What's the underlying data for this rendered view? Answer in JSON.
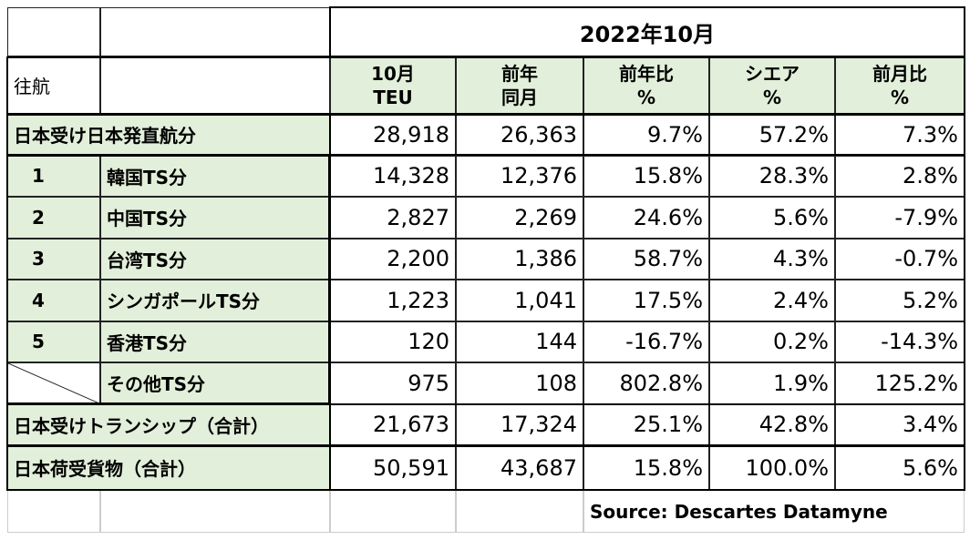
{
  "header": {
    "period": "2022年10月",
    "route": "往航",
    "columns": [
      [
        "10月",
        "TEU"
      ],
      [
        "前年",
        "同月"
      ],
      [
        "前年比",
        "%"
      ],
      [
        "シエア",
        "%"
      ],
      [
        "前月比",
        "%"
      ]
    ]
  },
  "table": {
    "rows": [
      {
        "name": "日本受け日本発直航分",
        "values": [
          "28,918",
          "26,363",
          "9.7%",
          "57.2%",
          "7.3%"
        ]
      },
      {
        "rank": "1",
        "name": "韓国TS分",
        "values": [
          "14,328",
          "12,376",
          "15.8%",
          "28.3%",
          "2.8%"
        ]
      },
      {
        "rank": "2",
        "name": "中国TS分",
        "values": [
          "2,827",
          "2,269",
          "24.6%",
          "5.6%",
          "-7.9%"
        ]
      },
      {
        "rank": "3",
        "name": "台湾TS分",
        "values": [
          "2,200",
          "1,386",
          "58.7%",
          "4.3%",
          "-0.7%"
        ]
      },
      {
        "rank": "4",
        "name": "シンガポールTS分",
        "values": [
          "1,223",
          "1,041",
          "17.5%",
          "2.4%",
          "5.2%"
        ]
      },
      {
        "rank": "5",
        "name": "香港TS分",
        "values": [
          "120",
          "144",
          "-16.7%",
          "0.2%",
          "-14.3%"
        ]
      },
      {
        "name": "その他TS分",
        "values": [
          "975",
          "108",
          "802.8%",
          "1.9%",
          "125.2%"
        ]
      },
      {
        "name": "日本受けトランシップ（合計）",
        "values": [
          "21,673",
          "17,324",
          "25.1%",
          "42.8%",
          "3.4%"
        ]
      },
      {
        "name": "日本荷受貨物（合計）",
        "values": [
          "50,591",
          "43,687",
          "15.8%",
          "100.0%",
          "5.6%"
        ]
      }
    ]
  },
  "source": "Source:  Descartes Datamyne"
}
